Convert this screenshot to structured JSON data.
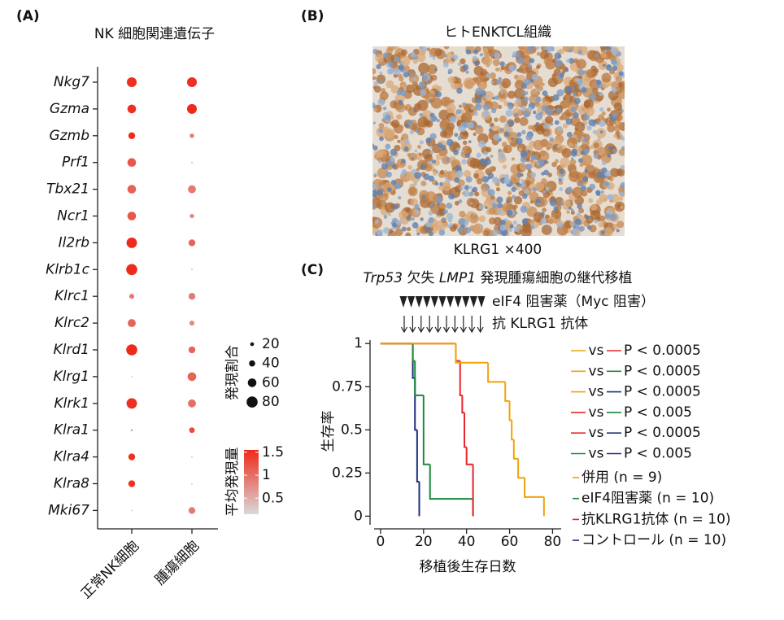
{
  "panel_labels": [
    "(A)",
    "(B)",
    "(C)"
  ],
  "image_panel": {
    "title": "ヒトENKTCL組織",
    "caption": "KLRG1 ×400"
  },
  "chart_data": [
    {
      "type": "dot",
      "title": "NK 細胞関連遺伝子",
      "categories": [
        "Nkg7",
        "Gzma",
        "Gzmb",
        "Prf1",
        "Tbx21",
        "Ncr1",
        "Il2rb",
        "Klrb1c",
        "Klrc1",
        "Klrc2",
        "Klrd1",
        "Klrg1",
        "Klrk1",
        "Klra1",
        "Klra4",
        "Klra8",
        "Mki67"
      ],
      "series": [
        {
          "name": "正常NK細胞",
          "values": [
            1.5,
            1.5,
            1.6,
            1.2,
            1.1,
            1.2,
            1.6,
            1.6,
            0.9,
            1.1,
            1.6,
            0.3,
            1.5,
            0.8,
            1.5,
            1.5,
            0.3
          ],
          "sizes": [
            70,
            60,
            45,
            60,
            60,
            60,
            75,
            80,
            30,
            55,
            80,
            2,
            75,
            5,
            45,
            45,
            2
          ]
        },
        {
          "name": "腫瘍細胞",
          "values": [
            1.5,
            1.6,
            0.9,
            0.3,
            0.9,
            0.8,
            1.1,
            0.3,
            0.9,
            0.8,
            1.1,
            1.1,
            1.0,
            1.3,
            0.3,
            0.3,
            0.9
          ],
          "sizes": [
            70,
            70,
            25,
            3,
            55,
            25,
            45,
            3,
            45,
            30,
            45,
            60,
            55,
            35,
            3,
            3,
            45
          ]
        }
      ],
      "size_legend": {
        "title": "発現割合",
        "values": [
          20,
          40,
          60,
          80
        ]
      },
      "color_legend": {
        "title": "平均発現量",
        "lim": [
          0.15,
          1.55
        ],
        "ticks": [
          0.5,
          1,
          1.5
        ],
        "colors": [
          "#d9d9d9",
          "#ee2a1a"
        ]
      }
    },
    {
      "type": "line",
      "step": true,
      "title_parts": [
        {
          "text": "Trp53",
          "italic": true
        },
        {
          "text": " 欠失 "
        },
        {
          "text": "LMP1",
          "italic": true
        },
        {
          "text": " 発現腫瘍細胞の継代移植"
        }
      ],
      "treatments": [
        "eIF4 阻害薬（Myc 阻害）",
        "抗 KLRG1 抗体"
      ],
      "xlabel": "移植後生存日数",
      "ylabel": "生存率",
      "xlim": [
        -3,
        84
      ],
      "ylim": [
        -0.05,
        1.02
      ],
      "xticks": [
        0,
        20,
        40,
        60,
        80
      ],
      "yticks": [
        0,
        0.25,
        0.5,
        0.75,
        1
      ],
      "series": [
        {
          "name": "併用 (n = 9)",
          "color": "#f0a30a",
          "x": [
            0,
            35,
            50,
            58,
            60,
            61,
            62,
            64,
            67,
            76
          ],
          "values": [
            1,
            0.889,
            0.778,
            0.667,
            0.556,
            0.444,
            0.333,
            0.222,
            0.111,
            0
          ]
        },
        {
          "name": "eIF4阻害薬 (n = 10)",
          "color": "#1a8a3a",
          "x": [
            0,
            15,
            16,
            20,
            23,
            43
          ],
          "values": [
            1,
            0.9,
            0.7,
            0.3,
            0.1,
            0
          ]
        },
        {
          "name": "抗KLRG1抗体 (n = 10)",
          "color": "#e8262a",
          "x": [
            0,
            35,
            37,
            38,
            39,
            40,
            43
          ],
          "values": [
            1,
            0.9,
            0.7,
            0.6,
            0.4,
            0.3,
            0
          ]
        },
        {
          "name": "コントロール (n = 10)",
          "color": "#1f2f7f",
          "x": [
            0,
            15,
            16,
            17,
            18
          ],
          "values": [
            1,
            0.8,
            0.5,
            0.2,
            0
          ]
        }
      ],
      "comparisons": [
        {
          "label": "vs",
          "p": "P < 0.0005",
          "colors": [
            "#f0a30a",
            "#e8262a"
          ]
        },
        {
          "label": "vs",
          "p": "P < 0.0005",
          "colors": [
            "#f0a30a",
            "#1a8a3a"
          ]
        },
        {
          "label": "vs",
          "p": "P < 0.0005",
          "colors": [
            "#f0a30a",
            "#1f2f7f"
          ]
        },
        {
          "label": "vs",
          "p": "P < 0.005",
          "colors": [
            "#e8262a",
            "#1a8a3a"
          ]
        },
        {
          "label": "vs",
          "p": "P < 0.0005",
          "colors": [
            "#e8262a",
            "#1f2f7f"
          ]
        },
        {
          "label": "vs",
          "p": "P < 0.005",
          "colors": [
            "#1a8a3a",
            "#1f2f7f"
          ]
        }
      ]
    }
  ]
}
